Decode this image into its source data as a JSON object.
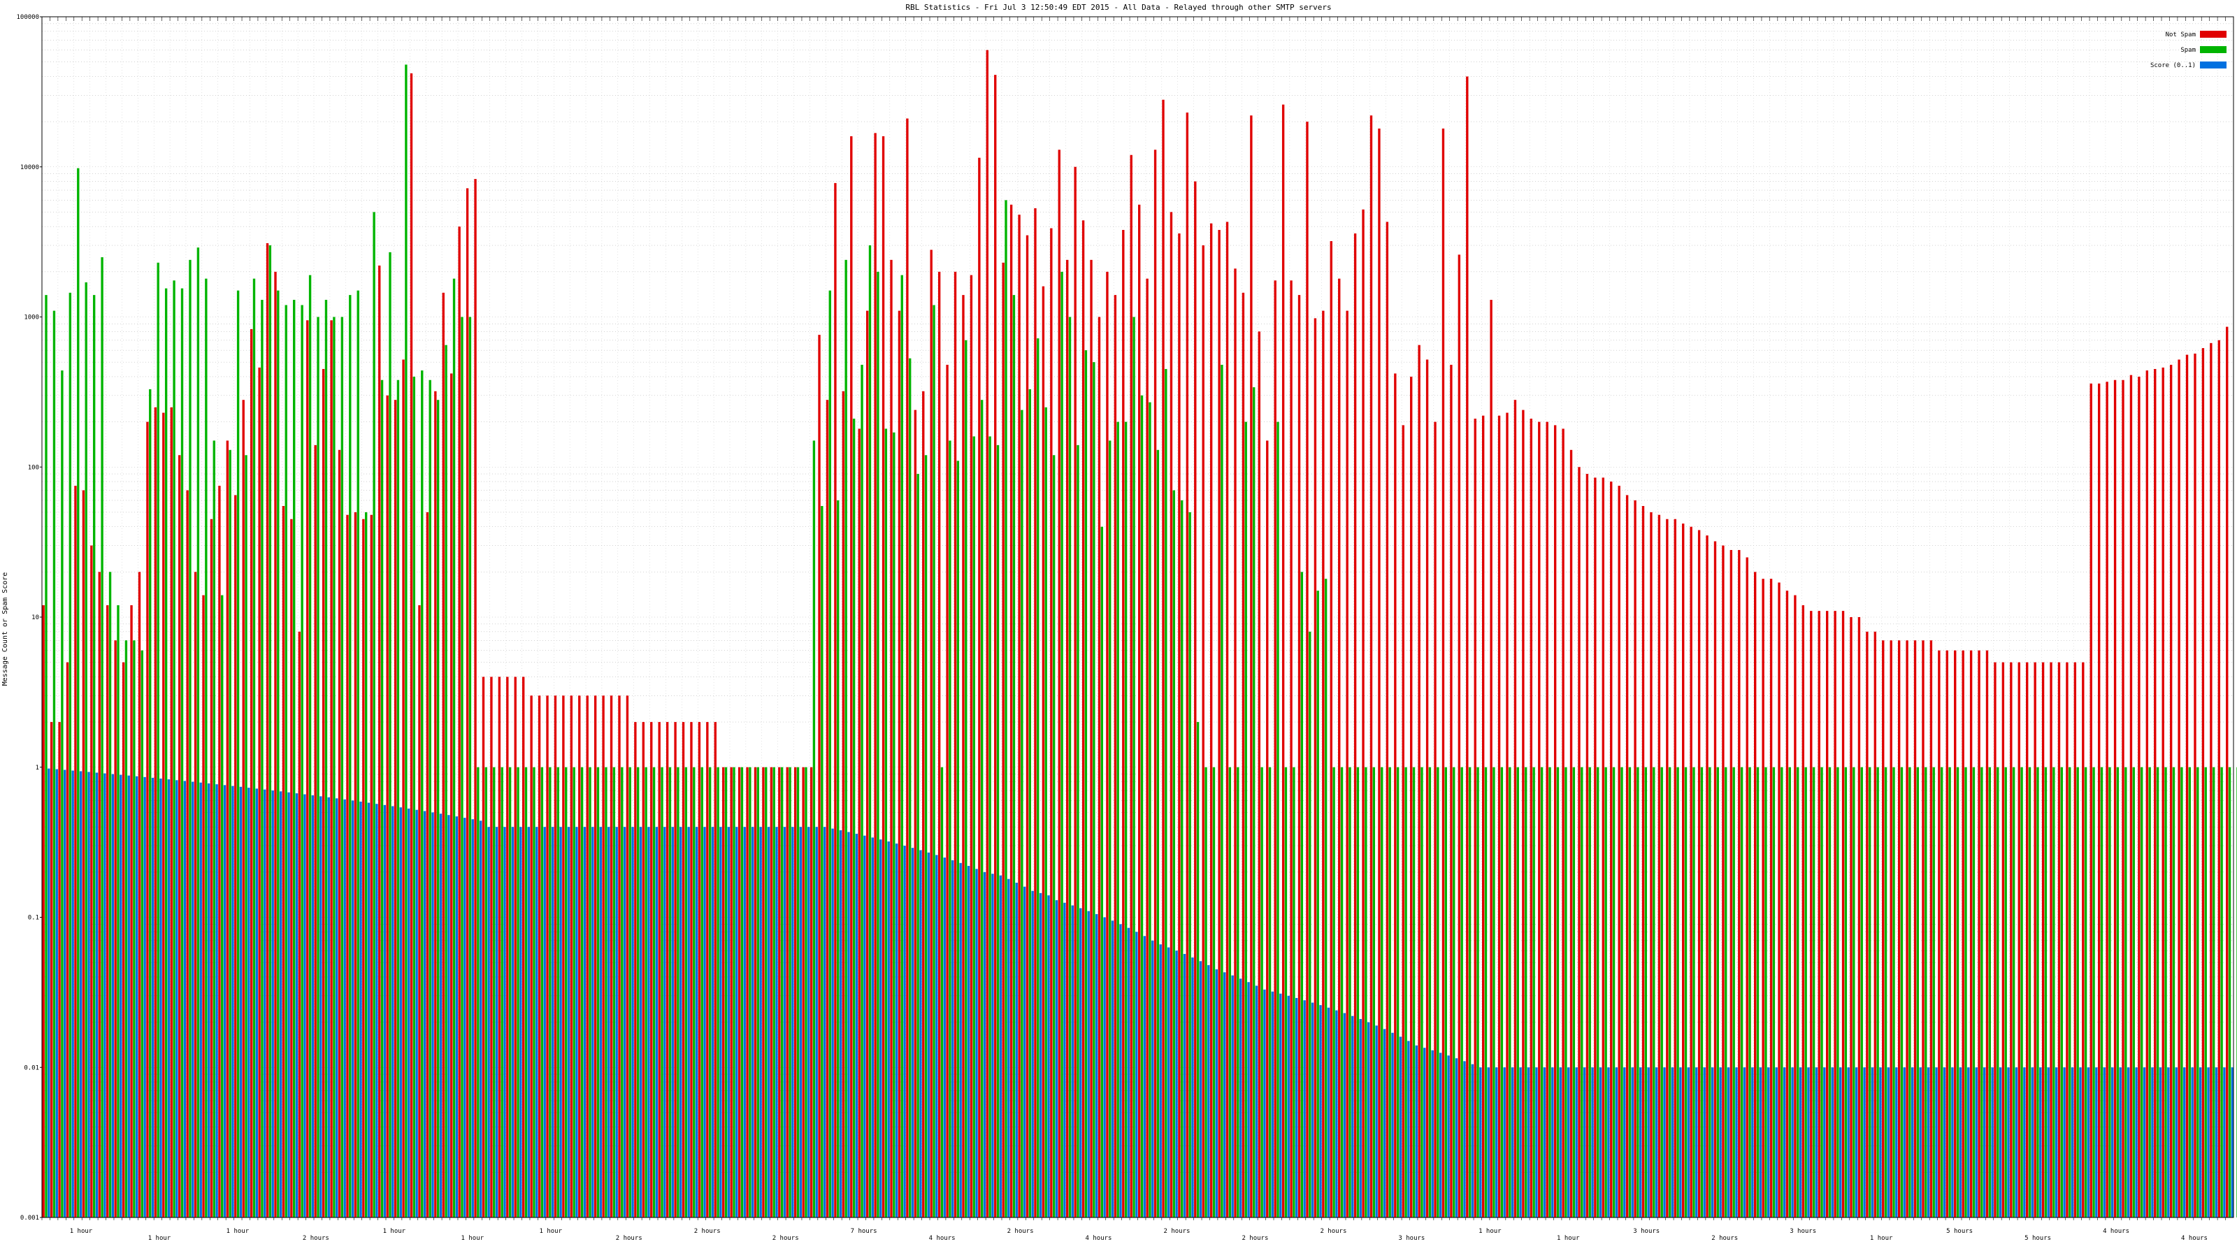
{
  "chart_data": {
    "type": "bar",
    "title": "RBL Statistics - Fri Jul  3 12:50:49 EDT 2015 - All Data - Relayed through other SMTP servers",
    "xlabel": "",
    "ylabel": "Message Count or Spam Score",
    "y_scale": "log",
    "ylim": [
      0.001,
      100000
    ],
    "y_ticks": [
      "0.001",
      "0.01",
      "0.1",
      "1",
      "10",
      "100",
      "1000",
      "10000",
      "100000"
    ],
    "grid": true,
    "legend_position": "top-right",
    "colors": {
      "not_spam": "#e00000",
      "spam": "#00b400",
      "score": "#0070e0"
    },
    "x_group_labels": [
      "1 hour",
      "1 hour",
      "1 hour",
      "2 hours",
      "1 hour",
      "1 hour",
      "1 hour",
      "2 hours",
      "2 hours",
      "2 hours",
      "7 hours",
      "4 hours",
      "2 hours",
      "4 hours",
      "2 hours",
      "2 hours",
      "2 hours",
      "3 hours",
      "1 hour",
      "1 hour",
      "3 hours",
      "2 hours",
      "3 hours",
      "1 hour",
      "5 hours",
      "5 hours",
      "4 hours",
      "4 hours"
    ],
    "series": [
      {
        "name": "Not Spam",
        "values": [
          12,
          2,
          2,
          5,
          75,
          70,
          30,
          20,
          12,
          7,
          5,
          12,
          20,
          200,
          250,
          230,
          250,
          120,
          70,
          20,
          14,
          45,
          75,
          150,
          65,
          280,
          830,
          460,
          3100,
          2000,
          55,
          45,
          8,
          950,
          140,
          450,
          950,
          130,
          48,
          50,
          45,
          48,
          2200,
          300,
          280,
          520,
          42000,
          12,
          50,
          320,
          1450,
          420,
          4000,
          7200,
          8300,
          4,
          4,
          4,
          4,
          4,
          4,
          3,
          3,
          3,
          3,
          3,
          3,
          3,
          3,
          3,
          3,
          3,
          3,
          3,
          2,
          2,
          2,
          2,
          2,
          2,
          2,
          2,
          2,
          2,
          2,
          1,
          1,
          1,
          1,
          1,
          1,
          1,
          1,
          1,
          1,
          1,
          1,
          760,
          280,
          7800,
          320,
          16000,
          180,
          1100,
          16800,
          16000,
          2400,
          1100,
          21000,
          240,
          320,
          2800,
          2000,
          480,
          2000,
          1400,
          1900,
          11500,
          60000,
          41000,
          2300,
          5600,
          4800,
          3500,
          5300,
          1600,
          3900,
          13000,
          2400,
          10000,
          4400,
          2400,
          1000,
          2000,
          1400,
          3800,
          12000,
          5600,
          1800,
          13000,
          28000,
          5000,
          3600,
          23000,
          8000,
          3000,
          4200,
          3800,
          4300,
          2100,
          1450,
          22000,
          800,
          150,
          1750,
          26000,
          1750,
          1400,
          20000,
          980,
          1100,
          3200,
          1800,
          1100,
          3600,
          5200,
          22000,
          18000,
          4300,
          420,
          190,
          400,
          650,
          520,
          200,
          18000,
          480,
          2600,
          40000,
          210,
          220,
          1300,
          220,
          230,
          280,
          240,
          210,
          200,
          200,
          190,
          180,
          130,
          100,
          90,
          85,
          85,
          80,
          75,
          65,
          60,
          55,
          50,
          48,
          45,
          45,
          42,
          40,
          38,
          35,
          32,
          30,
          28,
          28,
          25,
          20,
          18,
          18,
          17,
          15,
          14,
          12,
          11,
          11,
          11,
          11,
          11,
          10,
          10,
          8,
          8,
          7,
          7,
          7,
          7,
          7,
          7,
          7,
          6,
          6,
          6,
          6,
          6,
          6,
          6,
          5,
          5,
          5,
          5,
          5,
          5,
          5,
          5,
          5,
          5,
          5,
          5,
          360,
          360,
          370,
          380,
          380,
          410,
          400,
          440,
          450,
          460,
          480,
          520,
          560,
          570,
          620,
          670,
          700,
          860
        ]
      },
      {
        "name": "Spam",
        "values": [
          1400,
          1100,
          440,
          1450,
          9800,
          1700,
          1400,
          2500,
          20,
          12,
          7,
          7,
          6,
          330,
          2300,
          1550,
          1750,
          1550,
          2400,
          2900,
          1800,
          150,
          14,
          130,
          1500,
          120,
          1800,
          1300,
          3000,
          1500,
          1200,
          1300,
          1200,
          1900,
          1000,
          1300,
          1000,
          1000,
          1400,
          1500,
          50,
          5000,
          380,
          2700,
          380,
          48000,
          400,
          440,
          380,
          280,
          650,
          1800,
          1000,
          1000,
          1,
          1,
          1,
          1,
          1,
          1,
          1,
          1,
          1,
          1,
          1,
          1,
          1,
          1,
          1,
          1,
          1,
          1,
          1,
          1,
          1,
          1,
          1,
          1,
          1,
          1,
          1,
          1,
          1,
          1,
          1,
          1,
          1,
          1,
          1,
          1,
          1,
          1,
          1,
          1,
          1,
          1,
          150,
          55,
          1500,
          60,
          2400,
          210,
          480,
          3000,
          2000,
          180,
          170,
          1900,
          530,
          90,
          120,
          1200,
          1,
          150,
          110,
          700,
          160,
          280,
          160,
          140,
          6000,
          1400,
          240,
          330,
          720,
          250,
          120,
          2000,
          1000,
          140,
          600,
          500,
          40,
          150,
          200,
          200,
          1000,
          300,
          270,
          130,
          450,
          70,
          60,
          50,
          2,
          1,
          1,
          480,
          1,
          1,
          200,
          340,
          1,
          1,
          200,
          1,
          1,
          20,
          8,
          15,
          18,
          1,
          1,
          1,
          1,
          1,
          1,
          1,
          1,
          1,
          1,
          1,
          1,
          1,
          1,
          1,
          1,
          1,
          1,
          1,
          1,
          1,
          1,
          1,
          1,
          1,
          1,
          1,
          1,
          1,
          1,
          1,
          1,
          1,
          1,
          1,
          1,
          1,
          1,
          1,
          1,
          1,
          1,
          1,
          1,
          1,
          1,
          1,
          1,
          1,
          1,
          1,
          1,
          1,
          1,
          1,
          1,
          1,
          1,
          1,
          1,
          1,
          1,
          1,
          1,
          1,
          1,
          1,
          1,
          1,
          1,
          1,
          1,
          1,
          1,
          1,
          1,
          1,
          1,
          1,
          1,
          1,
          1,
          1,
          1,
          1,
          1,
          1,
          1,
          1,
          1,
          1,
          1,
          1,
          1,
          1,
          1,
          1,
          1,
          1,
          1,
          1,
          1,
          1,
          1,
          1,
          1,
          1,
          1,
          1,
          1,
          1,
          1,
          1,
          1,
          1,
          1,
          1,
          1,
          1,
          1,
          1,
          1,
          1,
          1,
          1,
          1,
          1,
          1,
          1,
          1,
          1,
          1,
          1,
          1,
          1,
          1,
          1,
          1,
          1,
          1,
          1,
          1,
          1,
          1,
          1,
          1,
          1,
          1,
          1
        ]
      },
      {
        "name": "Score (0..1)",
        "values": [
          0.98,
          0.97,
          0.96,
          0.95,
          0.94,
          0.93,
          0.92,
          0.91,
          0.9,
          0.89,
          0.88,
          0.87,
          0.86,
          0.85,
          0.84,
          0.83,
          0.82,
          0.81,
          0.8,
          0.79,
          0.78,
          0.77,
          0.76,
          0.75,
          0.74,
          0.73,
          0.72,
          0.71,
          0.7,
          0.69,
          0.68,
          0.67,
          0.66,
          0.65,
          0.64,
          0.63,
          0.62,
          0.61,
          0.6,
          0.59,
          0.58,
          0.57,
          0.56,
          0.55,
          0.54,
          0.53,
          0.52,
          0.51,
          0.5,
          0.49,
          0.48,
          0.47,
          0.46,
          0.45,
          0.44,
          0.4,
          0.4,
          0.4,
          0.4,
          0.4,
          0.4,
          0.4,
          0.4,
          0.4,
          0.4,
          0.4,
          0.4,
          0.4,
          0.4,
          0.4,
          0.4,
          0.4,
          0.4,
          0.4,
          0.4,
          0.4,
          0.4,
          0.4,
          0.4,
          0.4,
          0.4,
          0.4,
          0.4,
          0.4,
          0.4,
          0.4,
          0.4,
          0.4,
          0.4,
          0.4,
          0.4,
          0.4,
          0.4,
          0.4,
          0.4,
          0.4,
          0.4,
          0.4,
          0.39,
          0.38,
          0.37,
          0.36,
          0.35,
          0.34,
          0.33,
          0.32,
          0.31,
          0.3,
          0.29,
          0.28,
          0.27,
          0.26,
          0.25,
          0.24,
          0.23,
          0.22,
          0.21,
          0.2,
          0.195,
          0.19,
          0.18,
          0.17,
          0.16,
          0.15,
          0.145,
          0.14,
          0.13,
          0.125,
          0.12,
          0.115,
          0.11,
          0.105,
          0.1,
          0.095,
          0.09,
          0.085,
          0.08,
          0.075,
          0.07,
          0.066,
          0.063,
          0.06,
          0.057,
          0.054,
          0.051,
          0.048,
          0.045,
          0.043,
          0.041,
          0.039,
          0.037,
          0.035,
          0.033,
          0.032,
          0.031,
          0.03,
          0.029,
          0.028,
          0.027,
          0.026,
          0.025,
          0.024,
          0.023,
          0.022,
          0.021,
          0.02,
          0.019,
          0.018,
          0.017,
          0.016,
          0.015,
          0.014,
          0.0135,
          0.013,
          0.0125,
          0.012,
          0.0115,
          0.011,
          0.0105,
          0.01,
          0.01,
          0.01,
          0.01,
          0.01,
          0.01,
          0.01,
          0.01,
          0.01,
          0.01,
          0.01,
          0.01,
          0.01,
          0.01,
          0.01,
          0.01,
          0.01,
          0.01,
          0.01,
          0.01,
          0.01,
          0.01,
          0.01,
          0.01,
          0.01,
          0.01,
          0.01,
          0.01,
          0.01,
          0.01,
          0.01,
          0.01,
          0.01,
          0.01,
          0.01,
          0.01,
          0.01,
          0.01,
          0.01,
          0.01,
          0.01,
          0.01,
          0.01,
          0.01,
          0.01,
          0.01,
          0.01,
          0.01,
          0.01,
          0.01,
          0.01,
          0.01,
          0.01,
          0.01,
          0.01,
          0.01,
          0.01,
          0.01,
          0.01,
          0.01,
          0.01,
          0.01,
          0.01,
          0.01,
          0.01,
          0.01,
          0.01,
          0.01,
          0.01,
          0.01,
          0.01,
          0.01,
          0.01,
          0.01,
          0.01,
          0.01,
          0.01,
          0.01,
          0.01,
          0.01,
          0.01,
          0.01,
          0.01,
          0.01,
          0.01,
          0.01,
          0.01,
          0.01,
          0.01,
          0.01,
          0.01,
          0.01,
          0.01,
          0.01,
          0.01,
          0.01,
          0.01,
          0.01,
          0.01,
          0.01,
          0.01,
          0.01,
          0.01,
          0.01,
          0.01,
          0.01,
          0.0098,
          0.0095,
          0.0092,
          0.009,
          0.0088,
          0.0085,
          0.0082,
          0.008,
          0.0078,
          0.0075,
          0.0072,
          0.007,
          0.0068,
          0.0065,
          0.0062,
          0.006,
          0.0058,
          0.0055
        ]
      }
    ]
  }
}
